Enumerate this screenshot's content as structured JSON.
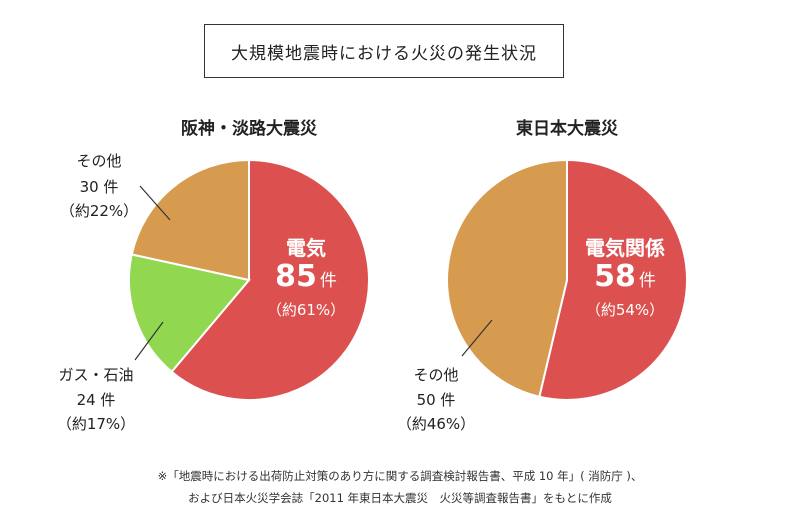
{
  "title": "大規模地震時における火災の発生状況",
  "footnote": [
    "※「地震時における出荷防止対策のあり方に関する調査検討報告書、平成 10 年」( 消防庁 )、",
    "および日本火災学会誌「2011 年東日本大震災　火災等調査報告書」をもとに作成"
  ],
  "colors": {
    "electric": "#dc5150",
    "gas": "#92d750",
    "other": "#d79b50"
  },
  "chart_data": [
    {
      "type": "pie",
      "title": "阪神・淡路大震災",
      "slices": [
        {
          "name": "電気",
          "value": 85,
          "count_label": "85",
          "unit": "件",
          "pct_label": "（約61%）",
          "percent": 61,
          "color": "#dc5150"
        },
        {
          "name": "ガス・石油",
          "value": 24,
          "count_label": "24 件",
          "pct_label": "（約17%）",
          "percent": 17,
          "color": "#92d750"
        },
        {
          "name": "その他",
          "value": 30,
          "count_label": "30 件",
          "pct_label": "（約22%）",
          "percent": 22,
          "color": "#d79b50"
        }
      ]
    },
    {
      "type": "pie",
      "title": "東日本大震災",
      "slices": [
        {
          "name": "電気関係",
          "value": 58,
          "count_label": "58",
          "unit": "件",
          "pct_label": "（約54%）",
          "percent": 54,
          "color": "#dc5150"
        },
        {
          "name": "その他",
          "value": 50,
          "count_label": "50 件",
          "pct_label": "（約46%）",
          "percent": 46,
          "color": "#d79b50"
        }
      ]
    }
  ]
}
